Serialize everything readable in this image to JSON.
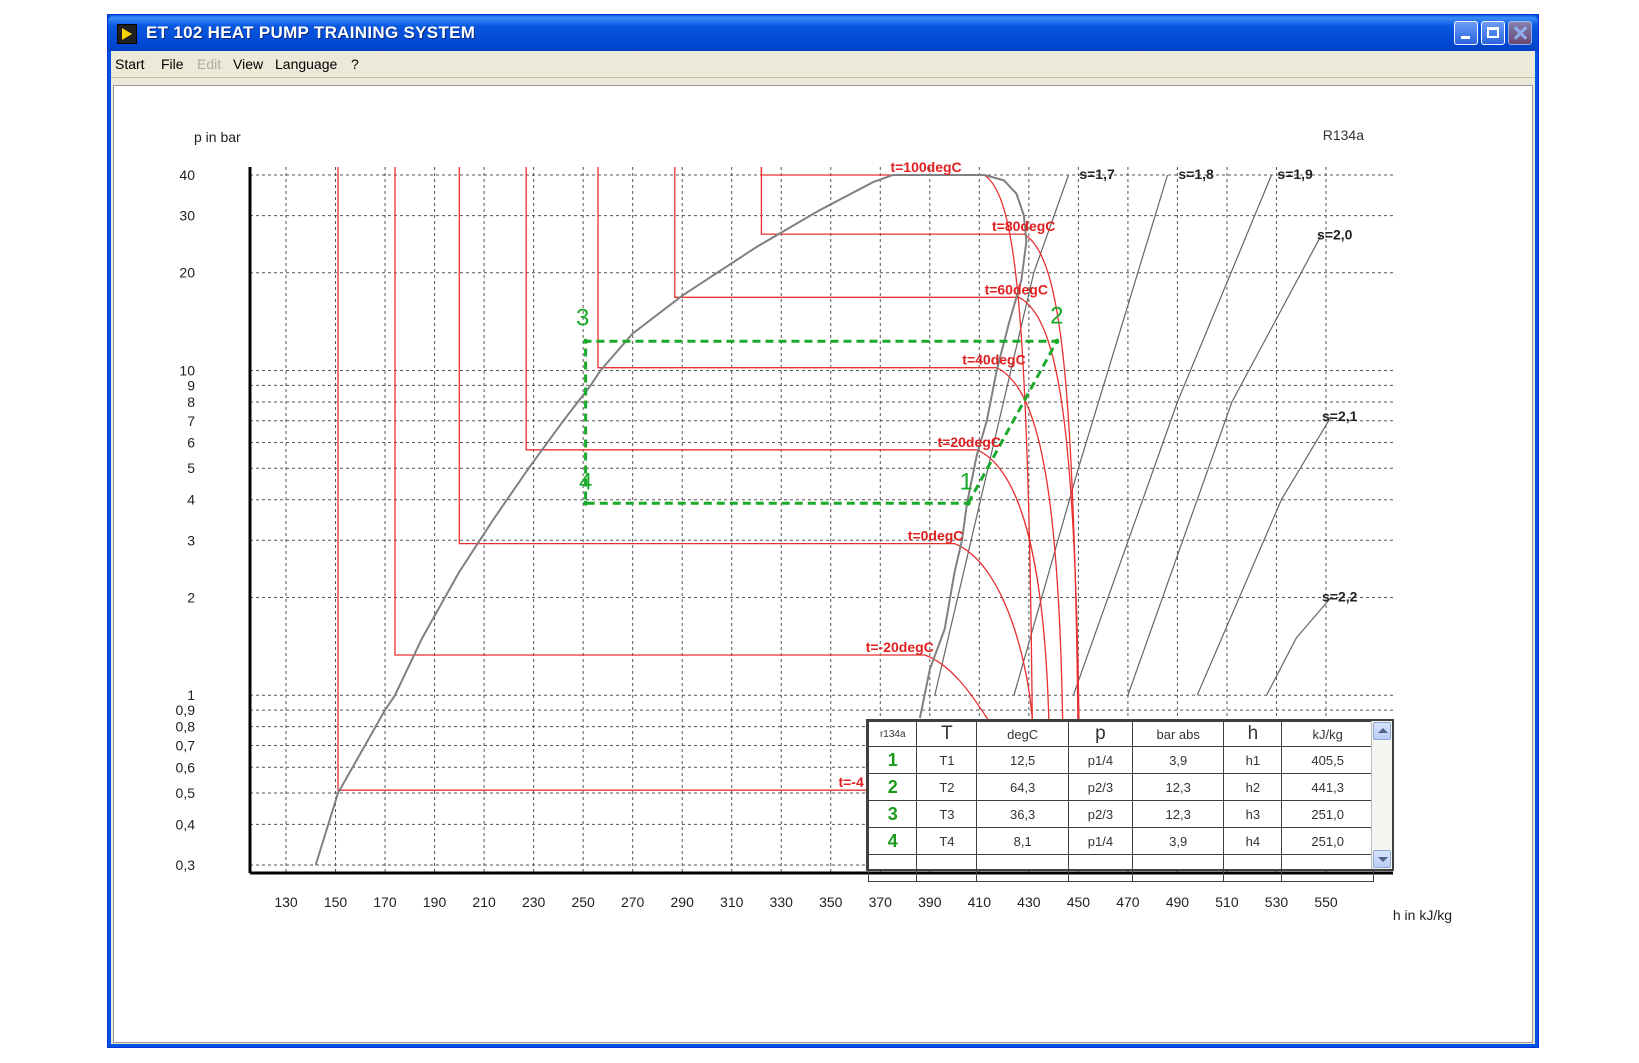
{
  "window": {
    "title": "ET 102 HEAT PUMP TRAINING SYSTEM"
  },
  "menu": [
    {
      "label": "Start",
      "enabled": true
    },
    {
      "label": "File",
      "enabled": true
    },
    {
      "label": "Edit",
      "enabled": false
    },
    {
      "label": "View",
      "enabled": true
    },
    {
      "label": "Language",
      "enabled": true
    },
    {
      "label": "?",
      "enabled": true
    }
  ],
  "chart_data": {
    "type": "line",
    "title": "R134a",
    "ylabel": "p in bar",
    "xlabel": "h in kJ/kg",
    "y_scale": "log",
    "xlim": [
      120,
      560
    ],
    "ylim": [
      0.3,
      40
    ],
    "grid": true,
    "x_ticks": [
      130,
      150,
      170,
      190,
      210,
      230,
      250,
      270,
      290,
      310,
      330,
      350,
      370,
      390,
      410,
      430,
      450,
      470,
      490,
      510,
      530,
      550
    ],
    "y_ticks": [
      {
        "value": 40,
        "label": "40"
      },
      {
        "value": 30,
        "label": "30"
      },
      {
        "value": 20,
        "label": "20"
      },
      {
        "value": 10,
        "label": "10"
      },
      {
        "value": 9,
        "label": "9"
      },
      {
        "value": 8,
        "label": "8"
      },
      {
        "value": 7,
        "label": "7"
      },
      {
        "value": 6,
        "label": "6"
      },
      {
        "value": 5,
        "label": "5"
      },
      {
        "value": 4,
        "label": "4"
      },
      {
        "value": 3,
        "label": "3"
      },
      {
        "value": 2,
        "label": "2"
      },
      {
        "value": 1,
        "label": "1"
      },
      {
        "value": 0.9,
        "label": "0,9"
      },
      {
        "value": 0.8,
        "label": "0,8"
      },
      {
        "value": 0.7,
        "label": "0,7"
      },
      {
        "value": 0.6,
        "label": "0,6"
      },
      {
        "value": 0.5,
        "label": "0,5"
      },
      {
        "value": 0.4,
        "label": "0,4"
      },
      {
        "value": 0.3,
        "label": "0,3"
      }
    ],
    "saturated_liquid": [
      [
        142,
        0.3
      ],
      [
        151,
        0.5
      ],
      [
        170,
        0.9
      ],
      [
        174,
        1.0
      ],
      [
        185,
        1.5
      ],
      [
        200,
        2.4
      ],
      [
        214,
        3.5
      ],
      [
        228,
        5.0
      ],
      [
        242,
        7.0
      ],
      [
        253,
        9.0
      ],
      [
        257,
        10.0
      ],
      [
        270,
        13.0
      ],
      [
        290,
        17.0
      ],
      [
        320,
        24.0
      ],
      [
        345,
        31.0
      ],
      [
        367,
        38.0
      ],
      [
        375,
        40.0
      ]
    ],
    "saturated_vapor": [
      [
        386,
        0.85
      ],
      [
        390,
        1.2
      ],
      [
        396,
        1.6
      ],
      [
        400,
        2.4
      ],
      [
        403,
        3.0
      ],
      [
        405,
        3.9
      ],
      [
        409,
        5.5
      ],
      [
        413,
        7.0
      ],
      [
        417,
        10.0
      ],
      [
        422,
        14.0
      ],
      [
        427,
        19.0
      ],
      [
        429,
        25.0
      ],
      [
        428,
        30.0
      ],
      [
        425,
        35.0
      ],
      [
        420,
        38.5
      ],
      [
        412,
        40.0
      ]
    ],
    "critical_line": {
      "h1": 375,
      "h2": 412,
      "p": 40
    },
    "isotherms": [
      {
        "label": "t=100degC",
        "h_liquid": 322,
        "h_vapor": 412,
        "p": 40,
        "label_h": 383
      },
      {
        "label": "t=80degC",
        "h_liquid": 322,
        "h_vapor": 428,
        "p": 26.3,
        "label_h": 424
      },
      {
        "label": "t=60degC",
        "h_liquid": 287,
        "h_vapor": 426,
        "p": 16.8,
        "label_h": 421
      },
      {
        "label": "t=40degC",
        "h_liquid": 256,
        "h_vapor": 417,
        "p": 10.2,
        "label_h": 412
      },
      {
        "label": "t=20degC",
        "h_liquid": 227,
        "h_vapor": 409,
        "p": 5.7,
        "label_h": 402
      },
      {
        "label": "t=0degC",
        "h_liquid": 200,
        "h_vapor": 400,
        "p": 2.93,
        "label_h": 390
      },
      {
        "label": "t=-20degC",
        "h_liquid": 174,
        "h_vapor": 388,
        "p": 1.33,
        "label_h": 373
      },
      {
        "label": "t=-4",
        "h_liquid": 151,
        "h_vapor": 378,
        "p": 0.51,
        "label_h": 362
      }
    ],
    "isentropes": [
      {
        "label": "s=1,7",
        "points": [
          [
            392,
            1.0
          ],
          [
            432,
            20.0
          ],
          [
            446,
            40.0
          ]
        ],
        "label_at": [
          452,
          40
        ]
      },
      {
        "label": "s=1,8",
        "points": [
          [
            424,
            1.0
          ],
          [
            450,
            5.0
          ],
          [
            486,
            40.0
          ]
        ],
        "label_at": [
          492,
          40
        ]
      },
      {
        "label": "s=1,9",
        "points": [
          [
            448,
            1.0
          ],
          [
            490,
            8.0
          ],
          [
            528,
            40.0
          ]
        ],
        "label_at": [
          532,
          40
        ]
      },
      {
        "label": "s=2,0",
        "points": [
          [
            470,
            1.0
          ],
          [
            512,
            8.0
          ],
          [
            548,
            26.0
          ]
        ],
        "label_at": [
          548,
          26
        ]
      },
      {
        "label": "s=2,1",
        "points": [
          [
            498,
            1.0
          ],
          [
            532,
            4.0
          ],
          [
            552,
            7.2
          ]
        ],
        "label_at": [
          550,
          7.2
        ]
      },
      {
        "label": "s=2,2",
        "points": [
          [
            526,
            1.0
          ],
          [
            538,
            1.5
          ],
          [
            552,
            2.0
          ]
        ],
        "label_at": [
          550,
          2.0
        ]
      }
    ],
    "cycle": {
      "series_color": "#1aaa2a",
      "points": [
        {
          "id": "1",
          "h": 405.5,
          "p": 3.9
        },
        {
          "id": "2",
          "h": 441.3,
          "p": 12.3
        },
        {
          "id": "3",
          "h": 251.0,
          "p": 12.3
        },
        {
          "id": "4",
          "h": 251.0,
          "p": 3.9
        }
      ]
    }
  },
  "table": {
    "header": [
      "r134a",
      "T",
      "degC",
      "p",
      "bar abs",
      "h",
      "kJ/kg"
    ],
    "rows": [
      {
        "num": "1",
        "t_label": "T1",
        "t_value": "12,5",
        "p_label": "p1/4",
        "p_value": "3,9",
        "h_label": "h1",
        "h_value": "405,5"
      },
      {
        "num": "2",
        "t_label": "T2",
        "t_value": "64,3",
        "p_label": "p2/3",
        "p_value": "12,3",
        "h_label": "h2",
        "h_value": "441,3"
      },
      {
        "num": "3",
        "t_label": "T3",
        "t_value": "36,3",
        "p_label": "p2/3",
        "p_value": "12,3",
        "h_label": "h3",
        "h_value": "251,0"
      },
      {
        "num": "4",
        "t_label": "T4",
        "t_value": "8,1",
        "p_label": "p1/4",
        "p_value": "3,9",
        "h_label": "h4",
        "h_value": "251,0"
      }
    ]
  }
}
